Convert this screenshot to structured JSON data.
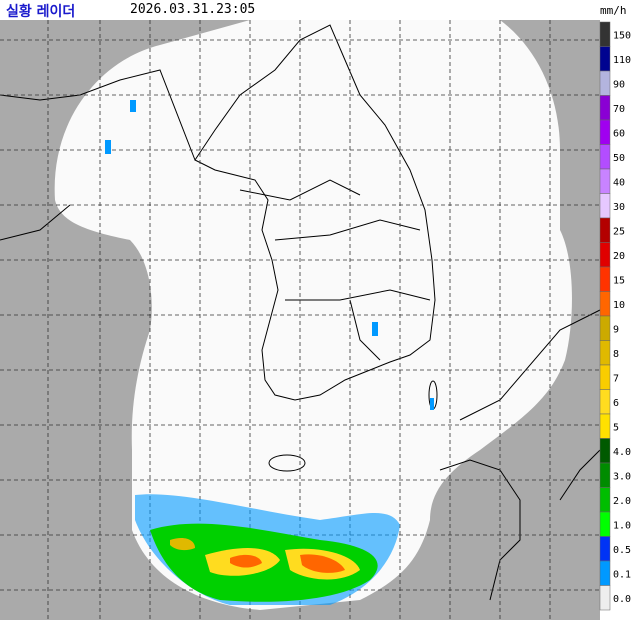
{
  "header": {
    "title": "실황 레이더",
    "timestamp": "2026.03.31.23:05"
  },
  "legend": {
    "unit": "mm/h",
    "entries": [
      {
        "label": "150",
        "color": "#333333"
      },
      {
        "label": "110",
        "color": "#000390"
      },
      {
        "label": "90",
        "color": "#b3b4de"
      },
      {
        "label": "70",
        "color": "#8a00d4"
      },
      {
        "label": "60",
        "color": "#a000f0"
      },
      {
        "label": "50",
        "color": "#b34dff"
      },
      {
        "label": "40",
        "color": "#c883ff"
      },
      {
        "label": "30",
        "color": "#e6c8ff"
      },
      {
        "label": "25",
        "color": "#b30000"
      },
      {
        "label": "20",
        "color": "#e00000"
      },
      {
        "label": "15",
        "color": "#ff3300"
      },
      {
        "label": "10",
        "color": "#ff6600"
      },
      {
        "label": "9",
        "color": "#ccaa00"
      },
      {
        "label": "8",
        "color": "#e0b900"
      },
      {
        "label": "7",
        "color": "#f9cd00"
      },
      {
        "label": "6",
        "color": "#ffdc1f"
      },
      {
        "label": "5",
        "color": "#ffe100"
      },
      {
        "label": "4.0",
        "color": "#005a00"
      },
      {
        "label": "3.0",
        "color": "#008c00"
      },
      {
        "label": "2.0",
        "color": "#00be00"
      },
      {
        "label": "1.0",
        "color": "#00ff00"
      },
      {
        "label": "0.5",
        "color": "#0033f5"
      },
      {
        "label": "0.1",
        "color": "#0099ff"
      },
      {
        "label": "0.0",
        "color": "#eeeeee"
      }
    ]
  }
}
